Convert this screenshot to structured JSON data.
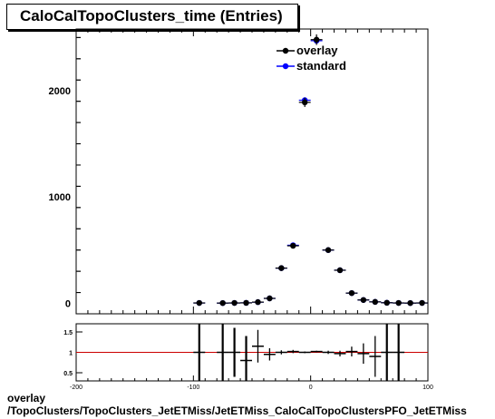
{
  "title": "CaloCalTopoClusters_time (Entries)",
  "footer": {
    "line1": "overlay",
    "line2": "/TopoClusters/TopoClusters_JetETMiss/JetETMiss_CaloCalTopoClustersPFO_JetETMiss"
  },
  "colors": {
    "overlay": "#000000",
    "standard": "#0000ff",
    "ratio_line": "#cc0000"
  },
  "chart_data": [
    {
      "type": "scatter",
      "panel": "main",
      "xlim": [
        -200,
        100
      ],
      "ylim": [
        -100,
        2580
      ],
      "yticks": [
        0,
        1000,
        2000
      ],
      "bin_width": 10,
      "legend": {
        "placement": "top-right",
        "entries": [
          "overlay",
          "standard"
        ]
      },
      "series": [
        {
          "name": "overlay",
          "x": [
            -95,
            -75,
            -65,
            -55,
            -45,
            -35,
            -25,
            -15,
            -5,
            5,
            15,
            25,
            35,
            45,
            55,
            65,
            75,
            85,
            95
          ],
          "values": [
            2,
            1,
            2,
            3,
            10,
            45,
            330,
            540,
            1890,
            2480,
            500,
            310,
            95,
            30,
            12,
            4,
            2,
            1,
            2
          ]
        },
        {
          "name": "standard",
          "x": [
            -95,
            -75,
            -65,
            -55,
            -45,
            -35,
            -25,
            -15,
            -5,
            5,
            15,
            25,
            35,
            45,
            55,
            65,
            75,
            85,
            95
          ],
          "values": [
            2,
            1,
            2,
            3,
            10,
            45,
            330,
            545,
            1910,
            2470,
            500,
            310,
            95,
            30,
            12,
            4,
            2,
            1,
            2
          ]
        }
      ]
    },
    {
      "type": "scatter",
      "panel": "ratio",
      "xlim": [
        -200,
        100
      ],
      "ylim": [
        0.3,
        1.7
      ],
      "yticks": [
        0.5,
        1,
        1.5
      ],
      "xticks": [
        -200,
        -100,
        0,
        100
      ],
      "reference": 1,
      "series": [
        {
          "name": "ratio",
          "x": [
            -95,
            -75,
            -65,
            -55,
            -45,
            -35,
            -25,
            -15,
            -5,
            5,
            15,
            25,
            35,
            45,
            55,
            65,
            75
          ],
          "values": [
            1.0,
            1.0,
            1.0,
            0.8,
            1.15,
            0.95,
            1.0,
            1.02,
            1.0,
            1.02,
            1.0,
            0.97,
            1.02,
            0.97,
            0.9,
            1.0,
            1.0
          ],
          "errors": [
            0.9,
            0.9,
            0.6,
            0.6,
            0.4,
            0.15,
            0.05,
            0.04,
            0.02,
            0.02,
            0.04,
            0.07,
            0.12,
            0.25,
            0.5,
            0.9,
            0.9
          ]
        }
      ]
    }
  ]
}
